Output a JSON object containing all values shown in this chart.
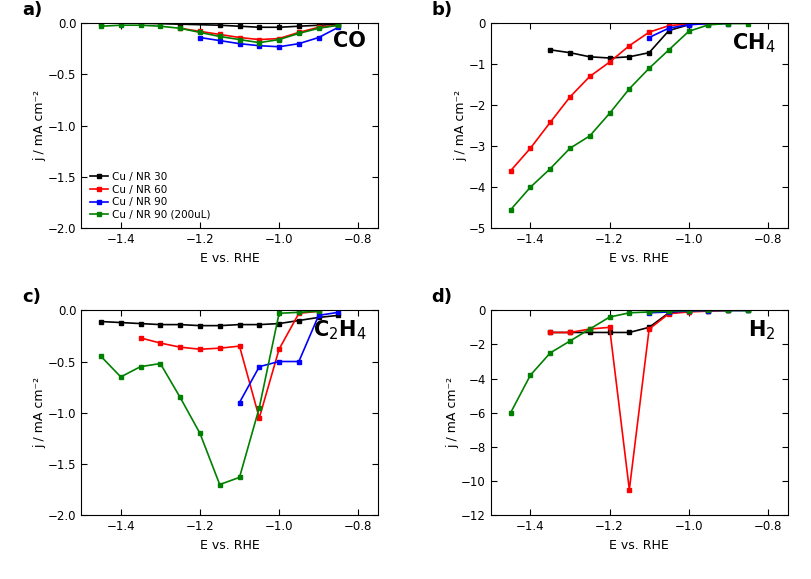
{
  "legend_labels": [
    "Cu / NR 30",
    "Cu / NR 60",
    "Cu / NR 90",
    "Cu / NR 90 (200uL)"
  ],
  "colors": [
    "black",
    "red",
    "blue",
    "green"
  ],
  "panel_labels": [
    "a)",
    "b)",
    "c)",
    "d)"
  ],
  "CO": {
    "black_x": [
      -1.45,
      -1.35,
      -1.25,
      -1.15,
      -1.1,
      -1.05,
      -1.0,
      -0.95,
      -0.9,
      -0.85
    ],
    "black_y": [
      0.0,
      0.0,
      -0.01,
      -0.02,
      -0.03,
      -0.04,
      -0.04,
      -0.03,
      -0.02,
      -0.01
    ],
    "red_x": [
      -1.25,
      -1.2,
      -1.15,
      -1.1,
      -1.05,
      -1.0,
      -0.95,
      -0.9,
      -0.85
    ],
    "red_y": [
      -0.05,
      -0.08,
      -0.11,
      -0.14,
      -0.16,
      -0.15,
      -0.09,
      -0.04,
      -0.02
    ],
    "blue_x": [
      -1.2,
      -1.15,
      -1.1,
      -1.05,
      -1.0,
      -0.95,
      -0.9,
      -0.85
    ],
    "blue_y": [
      -0.14,
      -0.17,
      -0.2,
      -0.22,
      -0.23,
      -0.2,
      -0.14,
      -0.04
    ],
    "green_x": [
      -1.45,
      -1.4,
      -1.35,
      -1.3,
      -1.25,
      -1.2,
      -1.15,
      -1.1,
      -1.05,
      -1.0,
      -0.95,
      -0.9,
      -0.85
    ],
    "green_y": [
      -0.03,
      -0.02,
      -0.02,
      -0.03,
      -0.05,
      -0.09,
      -0.13,
      -0.16,
      -0.19,
      -0.16,
      -0.1,
      -0.05,
      -0.02
    ],
    "ylim": [
      -2.0,
      0.0
    ],
    "yticks": [
      -2.0,
      -1.5,
      -1.0,
      -0.5,
      0.0
    ]
  },
  "CH4": {
    "black_x": [
      -1.35,
      -1.3,
      -1.25,
      -1.2,
      -1.15,
      -1.1,
      -1.05,
      -1.0
    ],
    "black_y": [
      -0.65,
      -0.72,
      -0.82,
      -0.85,
      -0.82,
      -0.72,
      -0.18,
      -0.04
    ],
    "red_x": [
      -1.45,
      -1.4,
      -1.35,
      -1.3,
      -1.25,
      -1.2,
      -1.15,
      -1.1,
      -1.05,
      -1.0,
      -0.95
    ],
    "red_y": [
      -3.6,
      -3.05,
      -2.42,
      -1.8,
      -1.3,
      -0.95,
      -0.55,
      -0.22,
      -0.06,
      -0.02,
      -0.01
    ],
    "blue_x": [
      -1.1,
      -1.05,
      -1.0,
      -0.95,
      -0.9
    ],
    "blue_y": [
      -0.35,
      -0.12,
      -0.04,
      -0.01,
      -0.01
    ],
    "green_x": [
      -1.45,
      -1.4,
      -1.35,
      -1.3,
      -1.25,
      -1.2,
      -1.15,
      -1.1,
      -1.05,
      -1.0,
      -0.95,
      -0.9,
      -0.85
    ],
    "green_y": [
      -4.55,
      -4.0,
      -3.55,
      -3.05,
      -2.75,
      -2.2,
      -1.6,
      -1.1,
      -0.65,
      -0.2,
      -0.04,
      -0.01,
      -0.01
    ],
    "ylim": [
      -5.0,
      0.0
    ],
    "yticks": [
      -5,
      -4,
      -3,
      -2,
      -1,
      0
    ]
  },
  "C2H4": {
    "black_x": [
      -1.45,
      -1.4,
      -1.35,
      -1.3,
      -1.25,
      -1.2,
      -1.15,
      -1.1,
      -1.05,
      -1.0,
      -0.95,
      -0.9,
      -0.85
    ],
    "black_y": [
      -0.11,
      -0.12,
      -0.13,
      -0.14,
      -0.14,
      -0.15,
      -0.15,
      -0.14,
      -0.14,
      -0.13,
      -0.1,
      -0.07,
      -0.05
    ],
    "red_x": [
      -1.35,
      -1.3,
      -1.25,
      -1.2,
      -1.15,
      -1.1,
      -1.05,
      -1.0,
      -0.95,
      -0.9
    ],
    "red_y": [
      -0.27,
      -0.32,
      -0.36,
      -0.38,
      -0.37,
      -0.35,
      -1.05,
      -0.38,
      -0.03,
      -0.01
    ],
    "blue_x": [
      -1.1,
      -1.05,
      -1.0,
      -0.95,
      -0.9,
      -0.85
    ],
    "blue_y": [
      -0.9,
      -0.55,
      -0.5,
      -0.5,
      -0.05,
      -0.02
    ],
    "green_x": [
      -1.45,
      -1.4,
      -1.35,
      -1.3,
      -1.25,
      -1.2,
      -1.15,
      -1.1,
      -1.05,
      -1.0,
      -0.95,
      -0.9
    ],
    "green_y": [
      -0.45,
      -0.65,
      -0.55,
      -0.52,
      -0.85,
      -1.2,
      -1.7,
      -1.63,
      -0.95,
      -0.03,
      -0.02,
      -0.01
    ],
    "ylim": [
      -2.0,
      0.0
    ],
    "yticks": [
      -2.0,
      -1.5,
      -1.0,
      -0.5,
      0.0
    ]
  },
  "H2": {
    "black_x": [
      -1.35,
      -1.3,
      -1.25,
      -1.2,
      -1.15,
      -1.1,
      -1.05,
      -1.0,
      -0.95,
      -0.9,
      -0.85
    ],
    "black_y": [
      -1.3,
      -1.3,
      -1.3,
      -1.3,
      -1.3,
      -1.0,
      -0.15,
      -0.05,
      -0.02,
      -0.01,
      -0.01
    ],
    "red_x": [
      -1.35,
      -1.3,
      -1.25,
      -1.2,
      -1.15,
      -1.1,
      -1.05,
      -1.0,
      -0.95,
      -0.9
    ],
    "red_y": [
      -1.3,
      -1.3,
      -1.1,
      -1.0,
      -10.5,
      -1.1,
      -0.2,
      -0.1,
      -0.05,
      -0.01
    ],
    "blue_x": [
      -1.1,
      -1.05,
      -1.0,
      -0.95,
      -0.9,
      -0.85
    ],
    "blue_y": [
      -0.15,
      -0.1,
      -0.05,
      -0.02,
      -0.01,
      -0.01
    ],
    "green_x": [
      -1.45,
      -1.4,
      -1.35,
      -1.3,
      -1.25,
      -1.2,
      -1.15,
      -1.1,
      -1.05,
      -1.0,
      -0.95,
      -0.9,
      -0.85
    ],
    "green_y": [
      -6.0,
      -3.8,
      -2.5,
      -1.8,
      -1.1,
      -0.4,
      -0.15,
      -0.1,
      -0.05,
      -0.02,
      -0.01,
      -0.01,
      -0.01
    ],
    "ylim": [
      -12.0,
      0.0
    ],
    "yticks": [
      -12,
      -10,
      -8,
      -6,
      -4,
      -2,
      0
    ]
  },
  "xlim": [
    -1.5,
    -0.75
  ],
  "xticks": [
    -1.4,
    -1.2,
    -1.0,
    -0.8
  ],
  "xlabel": "E vs. RHE",
  "ylabel": "j / mA cm⁻²"
}
